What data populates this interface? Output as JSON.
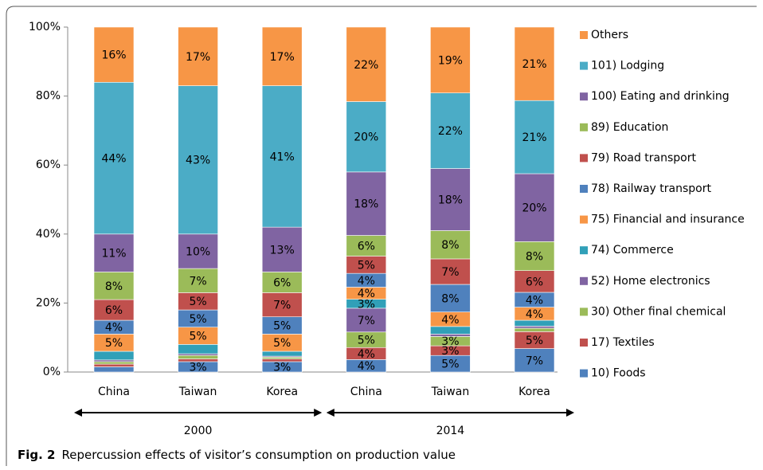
{
  "chart_data": {
    "type": "stacked-bar",
    "categories": [
      "China",
      "Taiwan",
      "Korea",
      "China",
      "Taiwan",
      "Korea"
    ],
    "groups": [
      "2000",
      "2014"
    ],
    "caption_label": "Fig. 2",
    "caption": "Repercussion effects of visitor’s consumption on production value",
    "ylim": [
      0,
      100
    ],
    "yticks": [
      {
        "value": 0,
        "label": "0%"
      },
      {
        "value": 20,
        "label": "20%"
      },
      {
        "value": 40,
        "label": "40%"
      },
      {
        "value": 60,
        "label": "60%"
      },
      {
        "value": 80,
        "label": "80%"
      },
      {
        "value": 100,
        "label": "100%"
      }
    ],
    "series": [
      {
        "name": "10) Foods",
        "color": "#4f81bd",
        "values": [
          1.5,
          3,
          3,
          3.6,
          4.8,
          6.8
        ],
        "value_labels": [
          null,
          "3%",
          "3%",
          "4%",
          "5%",
          "7%"
        ]
      },
      {
        "name": "17) Textiles",
        "color": "#c0504d",
        "values": [
          0.8,
          0.8,
          0.8,
          3.5,
          2.8,
          4.9
        ],
        "value_labels": [
          null,
          null,
          null,
          "4%",
          "3%",
          "5%"
        ]
      },
      {
        "name": "30) Other final chemical",
        "color": "#9bbb59",
        "values": [
          0.7,
          1,
          0.5,
          4.5,
          2.7,
          1.0
        ],
        "value_labels": [
          null,
          null,
          null,
          "5%",
          "3%",
          null
        ]
      },
      {
        "name": "52) Home electronics",
        "color": "#8064a2",
        "values": [
          0.5,
          0.5,
          0.3,
          6.9,
          0.7,
          0.6
        ],
        "value_labels": [
          null,
          null,
          null,
          "7%",
          null,
          null
        ]
      },
      {
        "name": "74) Commerce",
        "color": "#31a0b8",
        "values": [
          2.5,
          2.7,
          1.4,
          2.6,
          2.2,
          1.7
        ],
        "value_labels": [
          null,
          null,
          null,
          "3%",
          null,
          null
        ]
      },
      {
        "name": "75) Financial and insurance",
        "color": "#f79646",
        "values": [
          5,
          5,
          5,
          3.5,
          4.2,
          3.8
        ],
        "value_labels": [
          "5%",
          "5%",
          "5%",
          "4%",
          "4%",
          "4%"
        ]
      },
      {
        "name": "78) Railway transport",
        "color": "#4f81bd",
        "values": [
          4,
          5,
          5,
          4.0,
          8.0,
          4.3
        ],
        "value_labels": [
          "4%",
          "5%",
          "5%",
          "4%",
          "8%",
          "4%"
        ]
      },
      {
        "name": "79) Road transport",
        "color": "#c0504d",
        "values": [
          6,
          5,
          7,
          5.0,
          7.4,
          6.3
        ],
        "value_labels": [
          "6%",
          "5%",
          "7%",
          "5%",
          "7%",
          "6%"
        ]
      },
      {
        "name": "89) Education",
        "color": "#9bbb59",
        "values": [
          8,
          7,
          6,
          6.0,
          8.2,
          8.4
        ],
        "value_labels": [
          "8%",
          "7%",
          "6%",
          "6%",
          "8%",
          "8%"
        ]
      },
      {
        "name": "100)  Eating and drinking",
        "color": "#8064a2",
        "values": [
          11,
          10,
          13,
          18.4,
          18.0,
          19.7
        ],
        "value_labels": [
          "11%",
          "10%",
          "13%",
          "18%",
          "18%",
          "20%"
        ]
      },
      {
        "name": "101)  Lodging",
        "color": "#4bacc6",
        "values": [
          44,
          43,
          41,
          20.4,
          21.9,
          21.2
        ],
        "value_labels": [
          "44%",
          "43%",
          "41%",
          "20%",
          "22%",
          "21%"
        ]
      },
      {
        "name": "Others",
        "color": "#f79646",
        "values": [
          16,
          17,
          17,
          21.6,
          19.1,
          21.3
        ],
        "value_labels": [
          "16%",
          "17%",
          "17%",
          "22%",
          "19%",
          "21%"
        ]
      }
    ]
  }
}
